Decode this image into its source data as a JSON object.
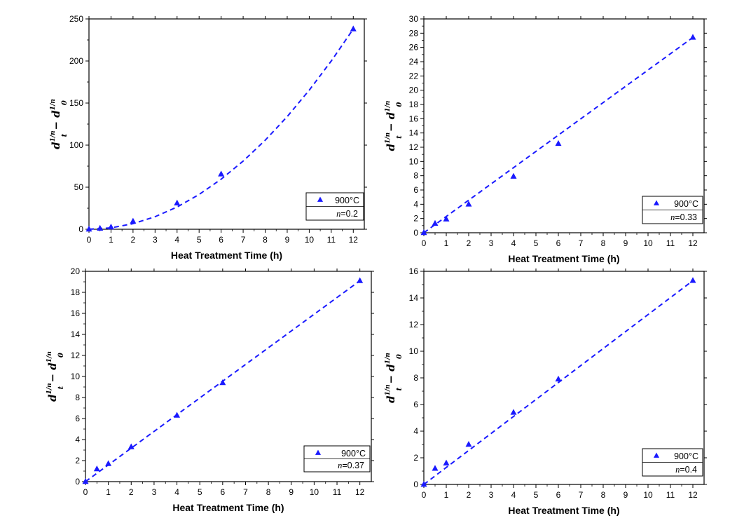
{
  "chart_data": [
    {
      "type": "scatter",
      "xlabel": "Heat Treatment Time (h)",
      "ylabel": "d_t^(1/n) − d_0^(1/n)",
      "xlim": [
        0,
        12.5
      ],
      "ylim": [
        0,
        250
      ],
      "x_ticks": [
        0,
        1,
        2,
        3,
        4,
        5,
        6,
        7,
        8,
        9,
        10,
        11,
        12
      ],
      "y_ticks": [
        0,
        50,
        100,
        150,
        200,
        250
      ],
      "grid": false,
      "legend_position": "bottom-right",
      "series": [
        {
          "name": "900°C",
          "marker": "triangle",
          "color": "#1a1aff",
          "x": [
            0,
            0.5,
            1,
            2,
            4,
            6,
            12
          ],
          "y": [
            0,
            1,
            2.5,
            9.5,
            31,
            65.5,
            238
          ]
        }
      ],
      "fit": {
        "style": "dashed",
        "color": "#1a1aff",
        "x": [
          0,
          1,
          2,
          3,
          4,
          5,
          6,
          7,
          8,
          9,
          10,
          11,
          12
        ],
        "y": [
          0,
          1.65,
          6.6,
          14.9,
          26.4,
          41.3,
          59.5,
          81,
          105.8,
          133.9,
          165.3,
          200,
          238
        ]
      },
      "legend": {
        "label": "900°C",
        "n_symbol": "n",
        "n_value": "=0.2"
      }
    },
    {
      "type": "scatter",
      "xlabel": "Heat Treatment Time (h)",
      "ylabel": "d_t^(1/n) − d_0^(1/n)",
      "xlim": [
        0,
        12.5
      ],
      "ylim": [
        0,
        30
      ],
      "x_ticks": [
        0,
        1,
        2,
        3,
        4,
        5,
        6,
        7,
        8,
        9,
        10,
        11,
        12
      ],
      "y_ticks": [
        0,
        2,
        4,
        6,
        8,
        10,
        12,
        14,
        16,
        18,
        20,
        22,
        24,
        26,
        28,
        30
      ],
      "grid": false,
      "legend_position": "bottom-right",
      "series": [
        {
          "name": "900°C",
          "marker": "triangle",
          "color": "#1a1aff",
          "x": [
            0,
            0.5,
            1,
            2,
            4,
            6,
            12
          ],
          "y": [
            0,
            1.3,
            1.9,
            4.0,
            7.9,
            12.5,
            27.4
          ]
        }
      ],
      "fit": {
        "style": "dashed",
        "color": "#1a1aff",
        "x": [
          0,
          12
        ],
        "y": [
          0,
          27.4
        ]
      },
      "legend": {
        "label": "900°C",
        "n_symbol": "n",
        "n_value": "=0.33"
      }
    },
    {
      "type": "scatter",
      "xlabel": "Heat Treatment Time (h)",
      "ylabel": "d_t^(1/n) − d_0^(1/n)",
      "xlim": [
        0,
        12.5
      ],
      "ylim": [
        0,
        20
      ],
      "x_ticks": [
        0,
        1,
        2,
        3,
        4,
        5,
        6,
        7,
        8,
        9,
        10,
        11,
        12
      ],
      "y_ticks": [
        0,
        2,
        4,
        6,
        8,
        10,
        12,
        14,
        16,
        18,
        20
      ],
      "grid": false,
      "legend_position": "bottom-right",
      "series": [
        {
          "name": "900°C",
          "marker": "triangle",
          "color": "#1a1aff",
          "x": [
            0,
            0.5,
            1,
            2,
            4,
            6,
            12
          ],
          "y": [
            0,
            1.2,
            1.7,
            3.3,
            6.3,
            9.4,
            19.1
          ]
        }
      ],
      "fit": {
        "style": "dashed",
        "color": "#1a1aff",
        "x": [
          0,
          12
        ],
        "y": [
          0,
          19.1
        ]
      },
      "legend": {
        "label": "900°C",
        "n_symbol": "n",
        "n_value": "=0.37"
      }
    },
    {
      "type": "scatter",
      "xlabel": "Heat Treatment Time (h)",
      "ylabel": "d_t^(1/n) − d_0^(1/n)",
      "xlim": [
        0,
        12.5
      ],
      "ylim": [
        0,
        16
      ],
      "x_ticks": [
        0,
        1,
        2,
        3,
        4,
        5,
        6,
        7,
        8,
        9,
        10,
        11,
        12
      ],
      "y_ticks": [
        0,
        2,
        4,
        6,
        8,
        10,
        12,
        14,
        16
      ],
      "grid": false,
      "legend_position": "bottom-right",
      "series": [
        {
          "name": "900°C",
          "marker": "triangle",
          "color": "#1a1aff",
          "x": [
            0,
            0.5,
            1,
            2,
            4,
            6,
            12
          ],
          "y": [
            0,
            1.2,
            1.6,
            3.0,
            5.4,
            7.9,
            15.3
          ]
        }
      ],
      "fit": {
        "style": "dashed",
        "color": "#1a1aff",
        "x": [
          0,
          12
        ],
        "y": [
          0,
          15.3
        ]
      },
      "legend": {
        "label": "900°C",
        "n_symbol": "n",
        "n_value": "=0.4"
      }
    }
  ]
}
